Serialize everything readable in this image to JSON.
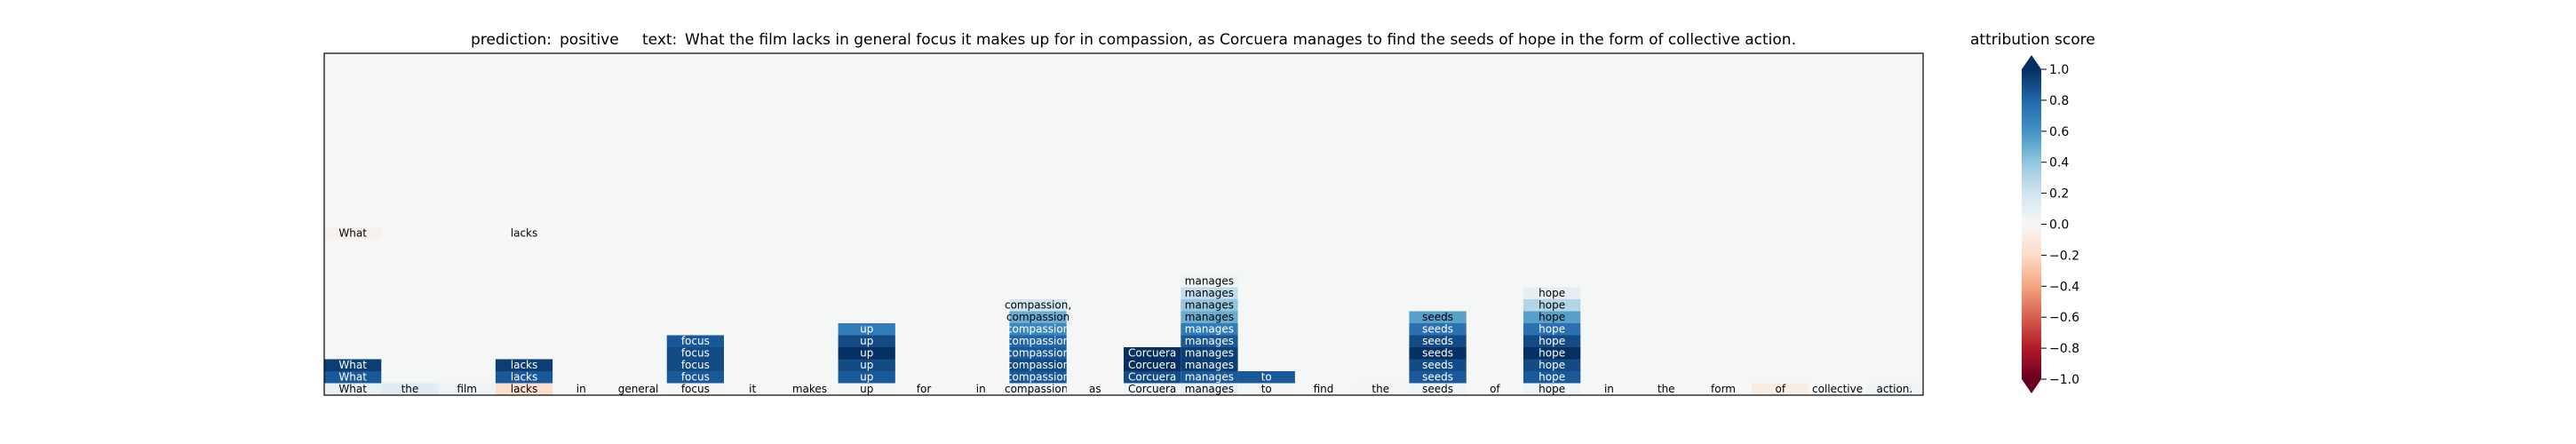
{
  "chart_data": {
    "type": "heatmap",
    "prediction_label": "prediction:",
    "prediction": "positive",
    "text_label": "text:",
    "text": "What the film lacks in general focus it makes up for in compassion, as Corcuera manages to find the seeds of hope in the form of collective action.",
    "colorbar_title": "attribution score",
    "colorbar_range": [
      -1.0,
      1.0
    ],
    "colorbar_ticks": [
      "1.0",
      "0.8",
      "0.6",
      "0.4",
      "0.2",
      "0.0",
      "−0.2",
      "−0.4",
      "−0.6",
      "−0.8",
      "−1.0"
    ],
    "colormap": "RdBu",
    "tokens": [
      "What",
      "the",
      "film",
      "lacks",
      "in",
      "general",
      "focus",
      "it",
      "makes",
      "up",
      "for",
      "in",
      "compassion,",
      "as",
      "Corcuera",
      "manages",
      "to",
      "find",
      "the",
      "seeds",
      "of",
      "hope",
      "in",
      "the",
      "form",
      "of",
      "collective",
      "action."
    ],
    "base_scores": [
      0.08,
      0.12,
      0.05,
      -0.18,
      0.0,
      0.0,
      0.02,
      0.0,
      0.0,
      0.02,
      0.0,
      0.0,
      0.04,
      0.0,
      0.05,
      0.1,
      0.02,
      0.0,
      0.02,
      0.03,
      0.0,
      0.04,
      0.0,
      0.0,
      0.0,
      -0.08,
      0.0,
      0.03
    ],
    "cells": [
      {
        "token": 0,
        "row": 1,
        "text": "What",
        "score": 0.85
      },
      {
        "token": 0,
        "row": 2,
        "text": "What",
        "score": 0.95
      },
      {
        "token": 0,
        "row": 13,
        "text": "What",
        "score": -0.05
      },
      {
        "token": 3,
        "row": 1,
        "text": "lacks",
        "score": 0.85
      },
      {
        "token": 3,
        "row": 2,
        "text": "lacks",
        "score": 0.95
      },
      {
        "token": 3,
        "row": 13,
        "text": "lacks",
        "score": 0.0
      },
      {
        "token": 6,
        "row": 1,
        "text": "focus",
        "score": 0.85
      },
      {
        "token": 6,
        "row": 2,
        "text": "focus",
        "score": 0.9
      },
      {
        "token": 6,
        "row": 3,
        "text": "focus",
        "score": 0.9
      },
      {
        "token": 6,
        "row": 4,
        "text": "focus",
        "score": 0.85
      },
      {
        "token": 9,
        "row": 1,
        "text": "up",
        "score": 0.85
      },
      {
        "token": 9,
        "row": 2,
        "text": "up",
        "score": 0.9
      },
      {
        "token": 9,
        "row": 3,
        "text": "up",
        "score": 1.0
      },
      {
        "token": 9,
        "row": 4,
        "text": "up",
        "score": 0.9
      },
      {
        "token": 9,
        "row": 5,
        "text": "up",
        "score": 0.7
      },
      {
        "token": 12,
        "row": 1,
        "text": "compassion",
        "score": 0.85
      },
      {
        "token": 12,
        "row": 2,
        "text": "compassion",
        "score": 0.9
      },
      {
        "token": 12,
        "row": 3,
        "text": "compassion",
        "score": 0.85
      },
      {
        "token": 12,
        "row": 4,
        "text": "compassion",
        "score": 0.8
      },
      {
        "token": 12,
        "row": 5,
        "text": "compassion",
        "score": 0.65
      },
      {
        "token": 12,
        "row": 6,
        "text": "compassion",
        "score": 0.5
      },
      {
        "token": 12,
        "row": 7,
        "text": "compassion,",
        "score": 0.2
      },
      {
        "token": 14,
        "row": 1,
        "text": "Corcuera",
        "score": 0.9
      },
      {
        "token": 14,
        "row": 2,
        "text": "Corcuera",
        "score": 1.0
      },
      {
        "token": 14,
        "row": 3,
        "text": "Corcuera",
        "score": 1.0
      },
      {
        "token": 15,
        "row": 1,
        "text": "manages",
        "score": 0.85
      },
      {
        "token": 15,
        "row": 2,
        "text": "manages",
        "score": 0.95
      },
      {
        "token": 15,
        "row": 3,
        "text": "manages",
        "score": 0.95
      },
      {
        "token": 15,
        "row": 4,
        "text": "manages",
        "score": 0.85
      },
      {
        "token": 15,
        "row": 5,
        "text": "manages",
        "score": 0.7
      },
      {
        "token": 15,
        "row": 6,
        "text": "manages",
        "score": 0.5
      },
      {
        "token": 15,
        "row": 7,
        "text": "manages",
        "score": 0.4
      },
      {
        "token": 15,
        "row": 8,
        "text": "manages",
        "score": 0.25
      },
      {
        "token": 15,
        "row": 9,
        "text": "manages",
        "score": 0.05
      },
      {
        "token": 16,
        "row": 1,
        "text": "to",
        "score": 0.85
      },
      {
        "token": 19,
        "row": 1,
        "text": "seeds",
        "score": 0.85
      },
      {
        "token": 19,
        "row": 2,
        "text": "seeds",
        "score": 0.9
      },
      {
        "token": 19,
        "row": 3,
        "text": "seeds",
        "score": 1.0
      },
      {
        "token": 19,
        "row": 4,
        "text": "seeds",
        "score": 0.9
      },
      {
        "token": 19,
        "row": 5,
        "text": "seeds",
        "score": 0.75
      },
      {
        "token": 19,
        "row": 6,
        "text": "seeds",
        "score": 0.55
      },
      {
        "token": 21,
        "row": 1,
        "text": "hope",
        "score": 0.85
      },
      {
        "token": 21,
        "row": 2,
        "text": "hope",
        "score": 0.9
      },
      {
        "token": 21,
        "row": 3,
        "text": "hope",
        "score": 1.0
      },
      {
        "token": 21,
        "row": 4,
        "text": "hope",
        "score": 0.9
      },
      {
        "token": 21,
        "row": 5,
        "text": "hope",
        "score": 0.75
      },
      {
        "token": 21,
        "row": 6,
        "text": "hope",
        "score": 0.55
      },
      {
        "token": 21,
        "row": 7,
        "text": "hope",
        "score": 0.3
      },
      {
        "token": 21,
        "row": 8,
        "text": "hope",
        "score": 0.1
      }
    ]
  }
}
